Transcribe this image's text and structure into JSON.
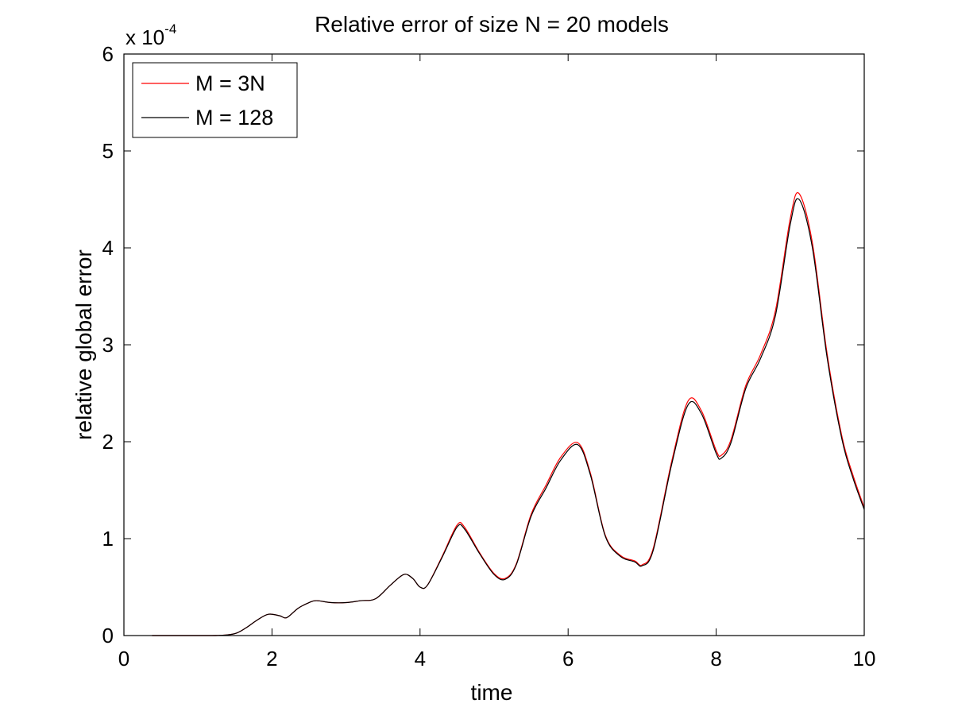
{
  "chart_data": {
    "type": "line",
    "title": "Relative error of size N = 20 models",
    "xlabel": "time",
    "ylabel": "relative global error",
    "y_multiplier": {
      "base": "x 10",
      "exponent": "-4"
    },
    "xlim": [
      0,
      10
    ],
    "ylim": [
      0,
      6
    ],
    "x_ticks": [
      0,
      2,
      4,
      6,
      8,
      10
    ],
    "y_ticks": [
      0,
      1,
      2,
      3,
      4,
      5,
      6
    ],
    "x_tick_labels": [
      "0",
      "2",
      "4",
      "6",
      "8",
      "10"
    ],
    "y_tick_labels": [
      "0",
      "1",
      "2",
      "3",
      "4",
      "5",
      "6"
    ],
    "grid": false,
    "legend_position": "top-left",
    "series": [
      {
        "name": "M = 3N",
        "color": "#ff0000",
        "x": [
          0.38,
          1.0,
          1.3,
          1.5,
          1.65,
          1.8,
          1.95,
          2.1,
          2.2,
          2.35,
          2.5,
          2.6,
          2.8,
          3.0,
          3.2,
          3.4,
          3.6,
          3.78,
          3.9,
          4.0,
          4.1,
          4.3,
          4.5,
          4.6,
          4.8,
          5.0,
          5.15,
          5.3,
          5.5,
          5.7,
          5.9,
          6.13,
          6.3,
          6.5,
          6.7,
          6.9,
          7.0,
          7.15,
          7.4,
          7.62,
          7.8,
          8.0,
          8.07,
          8.2,
          8.4,
          8.6,
          8.8,
          9.0,
          9.12,
          9.3,
          9.5,
          9.7,
          9.85,
          10.0
        ],
        "y": [
          0.0,
          0.0,
          0.002,
          0.02,
          0.08,
          0.16,
          0.22,
          0.205,
          0.185,
          0.28,
          0.34,
          0.36,
          0.34,
          0.34,
          0.36,
          0.38,
          0.52,
          0.63,
          0.59,
          0.5,
          0.52,
          0.82,
          1.14,
          1.12,
          0.86,
          0.64,
          0.59,
          0.74,
          1.25,
          1.55,
          1.84,
          1.99,
          1.68,
          1.04,
          0.83,
          0.77,
          0.73,
          0.9,
          1.8,
          2.42,
          2.32,
          1.91,
          1.86,
          2.02,
          2.58,
          2.9,
          3.35,
          4.3,
          4.56,
          4.05,
          2.9,
          2.05,
          1.65,
          1.32
        ]
      },
      {
        "name": "M = 128",
        "color": "#000000",
        "x": [
          0.38,
          1.0,
          1.3,
          1.5,
          1.65,
          1.8,
          1.95,
          2.1,
          2.2,
          2.35,
          2.5,
          2.6,
          2.8,
          3.0,
          3.2,
          3.4,
          3.6,
          3.78,
          3.9,
          4.0,
          4.1,
          4.3,
          4.5,
          4.6,
          4.8,
          5.0,
          5.15,
          5.3,
          5.5,
          5.7,
          5.9,
          6.13,
          6.3,
          6.5,
          6.7,
          6.9,
          7.0,
          7.15,
          7.4,
          7.62,
          7.8,
          8.0,
          8.07,
          8.2,
          8.4,
          8.6,
          8.8,
          9.0,
          9.12,
          9.3,
          9.5,
          9.7,
          9.85,
          10.0
        ],
        "y": [
          0.0,
          0.0,
          0.002,
          0.02,
          0.08,
          0.16,
          0.22,
          0.205,
          0.185,
          0.28,
          0.34,
          0.36,
          0.34,
          0.34,
          0.36,
          0.38,
          0.52,
          0.63,
          0.59,
          0.5,
          0.52,
          0.81,
          1.12,
          1.1,
          0.85,
          0.63,
          0.58,
          0.73,
          1.23,
          1.52,
          1.81,
          1.97,
          1.66,
          1.03,
          0.82,
          0.76,
          0.72,
          0.88,
          1.77,
          2.38,
          2.29,
          1.88,
          1.83,
          1.99,
          2.55,
          2.86,
          3.3,
          4.24,
          4.5,
          4.0,
          2.86,
          2.02,
          1.62,
          1.3
        ]
      }
    ]
  }
}
